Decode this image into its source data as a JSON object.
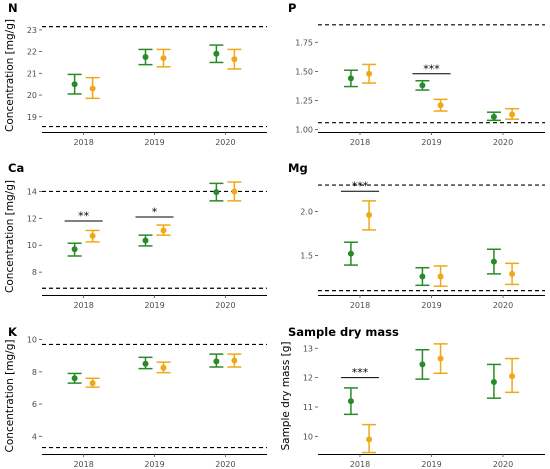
{
  "colors": {
    "series_a": "#2a8a2a",
    "series_b": "#f0a818",
    "reference_line": "#000000",
    "axis": "#000000"
  },
  "chart_data": [
    {
      "type": "scatter",
      "title": "N",
      "ylabel": "Concentration [mg/g]",
      "xlabel": "",
      "categories": [
        "2018",
        "2019",
        "2020"
      ],
      "y_ticks": [
        "19",
        "20",
        "21",
        "22",
        "23"
      ],
      "ylim": [
        18.3,
        23.5
      ],
      "reference_lines": [
        23.15,
        18.55
      ],
      "series": [
        {
          "values": [
            20.5,
            21.75,
            21.9
          ],
          "err_low": [
            20.05,
            21.4,
            21.5
          ],
          "err_high": [
            20.95,
            22.1,
            22.3
          ]
        },
        {
          "values": [
            20.3,
            21.7,
            21.65
          ],
          "err_low": [
            19.85,
            21.3,
            21.2
          ],
          "err_high": [
            20.8,
            22.1,
            22.1
          ]
        }
      ],
      "significance": []
    },
    {
      "type": "scatter",
      "title": "P",
      "ylabel": "",
      "xlabel": "",
      "categories": [
        "2018",
        "2019",
        "2020"
      ],
      "y_ticks": [
        "1.00",
        "1.25",
        "1.50",
        "1.75"
      ],
      "ylim": [
        0.98,
        1.95
      ],
      "reference_lines": [
        1.9,
        1.06
      ],
      "series": [
        {
          "values": [
            1.44,
            1.38,
            1.11
          ],
          "err_low": [
            1.37,
            1.34,
            1.08
          ],
          "err_high": [
            1.51,
            1.42,
            1.15
          ]
        },
        {
          "values": [
            1.48,
            1.21,
            1.13
          ],
          "err_low": [
            1.4,
            1.16,
            1.09
          ],
          "err_high": [
            1.56,
            1.26,
            1.18
          ]
        }
      ],
      "significance": [
        {
          "category": "2019",
          "label": "***",
          "y": 1.48
        }
      ]
    },
    {
      "type": "scatter",
      "title": "Ca",
      "ylabel": "Concentration [mg/g]",
      "xlabel": "",
      "categories": [
        "2018",
        "2019",
        "2020"
      ],
      "y_ticks": [
        "8",
        "10",
        "12",
        "14"
      ],
      "ylim": [
        6.3,
        15.0
      ],
      "reference_lines": [
        14.0,
        6.8
      ],
      "series": [
        {
          "values": [
            9.7,
            10.35,
            13.95
          ],
          "err_low": [
            9.2,
            9.95,
            13.3
          ],
          "err_high": [
            10.15,
            10.75,
            14.6
          ]
        },
        {
          "values": [
            10.7,
            11.1,
            14.0
          ],
          "err_low": [
            10.25,
            10.75,
            13.3
          ],
          "err_high": [
            11.1,
            11.5,
            14.7
          ]
        }
      ],
      "significance": [
        {
          "category": "2018",
          "label": "**",
          "y": 11.8
        },
        {
          "category": "2019",
          "label": "*",
          "y": 12.1
        }
      ]
    },
    {
      "type": "scatter",
      "title": "Mg",
      "ylabel": "",
      "xlabel": "",
      "categories": [
        "2018",
        "2019",
        "2020"
      ],
      "y_ticks": [
        "1.5",
        "2.0"
      ],
      "ylim": [
        1.05,
        2.38
      ],
      "reference_lines": [
        2.3,
        1.1
      ],
      "series": [
        {
          "values": [
            1.52,
            1.26,
            1.43
          ],
          "err_low": [
            1.39,
            1.16,
            1.29
          ],
          "err_high": [
            1.65,
            1.36,
            1.57
          ]
        },
        {
          "values": [
            1.96,
            1.26,
            1.29
          ],
          "err_low": [
            1.79,
            1.15,
            1.17
          ],
          "err_high": [
            2.12,
            1.38,
            1.41
          ]
        }
      ],
      "significance": [
        {
          "category": "2018",
          "label": "***",
          "y": 2.23
        }
      ]
    },
    {
      "type": "scatter",
      "title": "K",
      "ylabel": "Concentration [mg/g]",
      "xlabel": "",
      "categories": [
        "2018",
        "2019",
        "2020"
      ],
      "y_ticks": [
        "4",
        "6",
        "8",
        "10"
      ],
      "ylim": [
        2.9,
        10.1
      ],
      "reference_lines": [
        9.7,
        3.3
      ],
      "series": [
        {
          "values": [
            7.6,
            8.5,
            8.65
          ],
          "err_low": [
            7.3,
            8.2,
            8.3
          ],
          "err_high": [
            7.9,
            8.9,
            9.1
          ]
        },
        {
          "values": [
            7.3,
            8.25,
            8.7
          ],
          "err_low": [
            7.05,
            7.95,
            8.3
          ],
          "err_high": [
            7.6,
            8.6,
            9.1
          ]
        }
      ],
      "significance": []
    },
    {
      "type": "scatter",
      "title": "Sample dry mass",
      "ylabel": "Sample dry mass [g]",
      "xlabel": "",
      "categories": [
        "2018",
        "2019",
        "2020"
      ],
      "y_ticks": [
        "10",
        "11",
        "12",
        "13"
      ],
      "ylim": [
        9.4,
        13.35
      ],
      "reference_lines": [],
      "series": [
        {
          "values": [
            11.2,
            12.45,
            11.85
          ],
          "err_low": [
            10.75,
            11.95,
            11.3
          ],
          "err_high": [
            11.65,
            12.95,
            12.45
          ]
        },
        {
          "values": [
            9.9,
            12.65,
            12.05
          ],
          "err_low": [
            9.45,
            12.15,
            11.5
          ],
          "err_high": [
            10.4,
            13.15,
            12.65
          ]
        }
      ],
      "significance": [
        {
          "category": "2018",
          "label": "***",
          "y": 12.0
        }
      ]
    }
  ]
}
